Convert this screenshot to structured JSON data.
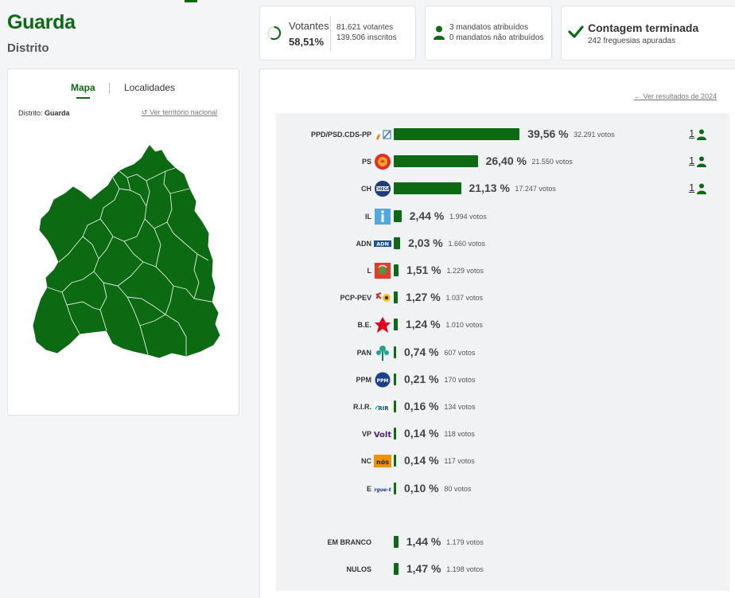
{
  "header": {
    "title": "Guarda",
    "subtitle": "Distrito"
  },
  "votantes": {
    "label": "Votantes",
    "percent": "58,51%",
    "votantes_text": "81.621 votantes",
    "inscritos_text": "139.506 inscritos"
  },
  "mandatos": {
    "atribuidos": "3 mandatos atribuídos",
    "nao_atribuidos": "0 mandatos não atribuídos"
  },
  "contagem": {
    "title": "Contagem terminada",
    "subtitle": "242 freguesias apuradas"
  },
  "map_panel": {
    "tab_mapa": "Mapa",
    "tab_localidades": "Localidades",
    "distrito_prefix": "Distrito:",
    "distrito_value": "Guarda",
    "ver_nacional": "Ver território nacional"
  },
  "results": {
    "ver_2024": "Ver resultados de 2024",
    "parties": [
      {
        "name": "PPD/PSD.CDS-PP",
        "pct": "39,56 %",
        "pct_value": 39.56,
        "votes": "32.291 votos",
        "seats": "1",
        "logo": "psd-cds-logo"
      },
      {
        "name": "PS",
        "pct": "26,40 %",
        "pct_value": 26.4,
        "votes": "21.550 votos",
        "seats": "1",
        "logo": "ps-logo"
      },
      {
        "name": "CH",
        "pct": "21,13 %",
        "pct_value": 21.13,
        "votes": "17.247 votos",
        "seats": "1",
        "logo": "chega-logo"
      },
      {
        "name": "IL",
        "pct": "2,44 %",
        "pct_value": 2.44,
        "votes": "1.994 votos",
        "seats": "",
        "logo": "il-logo"
      },
      {
        "name": "ADN",
        "pct": "2,03 %",
        "pct_value": 2.03,
        "votes": "1.660 votos",
        "seats": "",
        "logo": "adn-logo"
      },
      {
        "name": "L",
        "pct": "1,51 %",
        "pct_value": 1.51,
        "votes": "1.229 votos",
        "seats": "",
        "logo": "livre-logo"
      },
      {
        "name": "PCP-PEV",
        "pct": "1,27 %",
        "pct_value": 1.27,
        "votes": "1.037 votos",
        "seats": "",
        "logo": "pcp-pev-logo"
      },
      {
        "name": "B.E.",
        "pct": "1,24 %",
        "pct_value": 1.24,
        "votes": "1.010 votos",
        "seats": "",
        "logo": "be-logo"
      },
      {
        "name": "PAN",
        "pct": "0,74 %",
        "pct_value": 0.74,
        "votes": "607 votos",
        "seats": "",
        "logo": "pan-logo"
      },
      {
        "name": "PPM",
        "pct": "0,21 %",
        "pct_value": 0.21,
        "votes": "170 votos",
        "seats": "",
        "logo": "ppm-logo"
      },
      {
        "name": "R.I.R.",
        "pct": "0,16 %",
        "pct_value": 0.16,
        "votes": "134 votos",
        "seats": "",
        "logo": "rir-logo"
      },
      {
        "name": "VP",
        "pct": "0,14 %",
        "pct_value": 0.14,
        "votes": "118 votos",
        "seats": "",
        "logo": "volt-logo"
      },
      {
        "name": "NC",
        "pct": "0,14 %",
        "pct_value": 0.14,
        "votes": "117 votos",
        "seats": "",
        "logo": "nos-cidadaos-logo"
      },
      {
        "name": "E",
        "pct": "0,10 %",
        "pct_value": 0.1,
        "votes": "80 votos",
        "seats": "",
        "logo": "ergue-te-logo"
      }
    ],
    "blank": {
      "name": "EM BRANCO",
      "pct": "1,44 %",
      "pct_value": 1.44,
      "votes": "1.179 votos"
    },
    "null": {
      "name": "NULOS",
      "pct": "1,47 %",
      "pct_value": 1.47,
      "votes": "1.198 votos"
    }
  },
  "colors": {
    "accent_green": "#0b6a12"
  }
}
